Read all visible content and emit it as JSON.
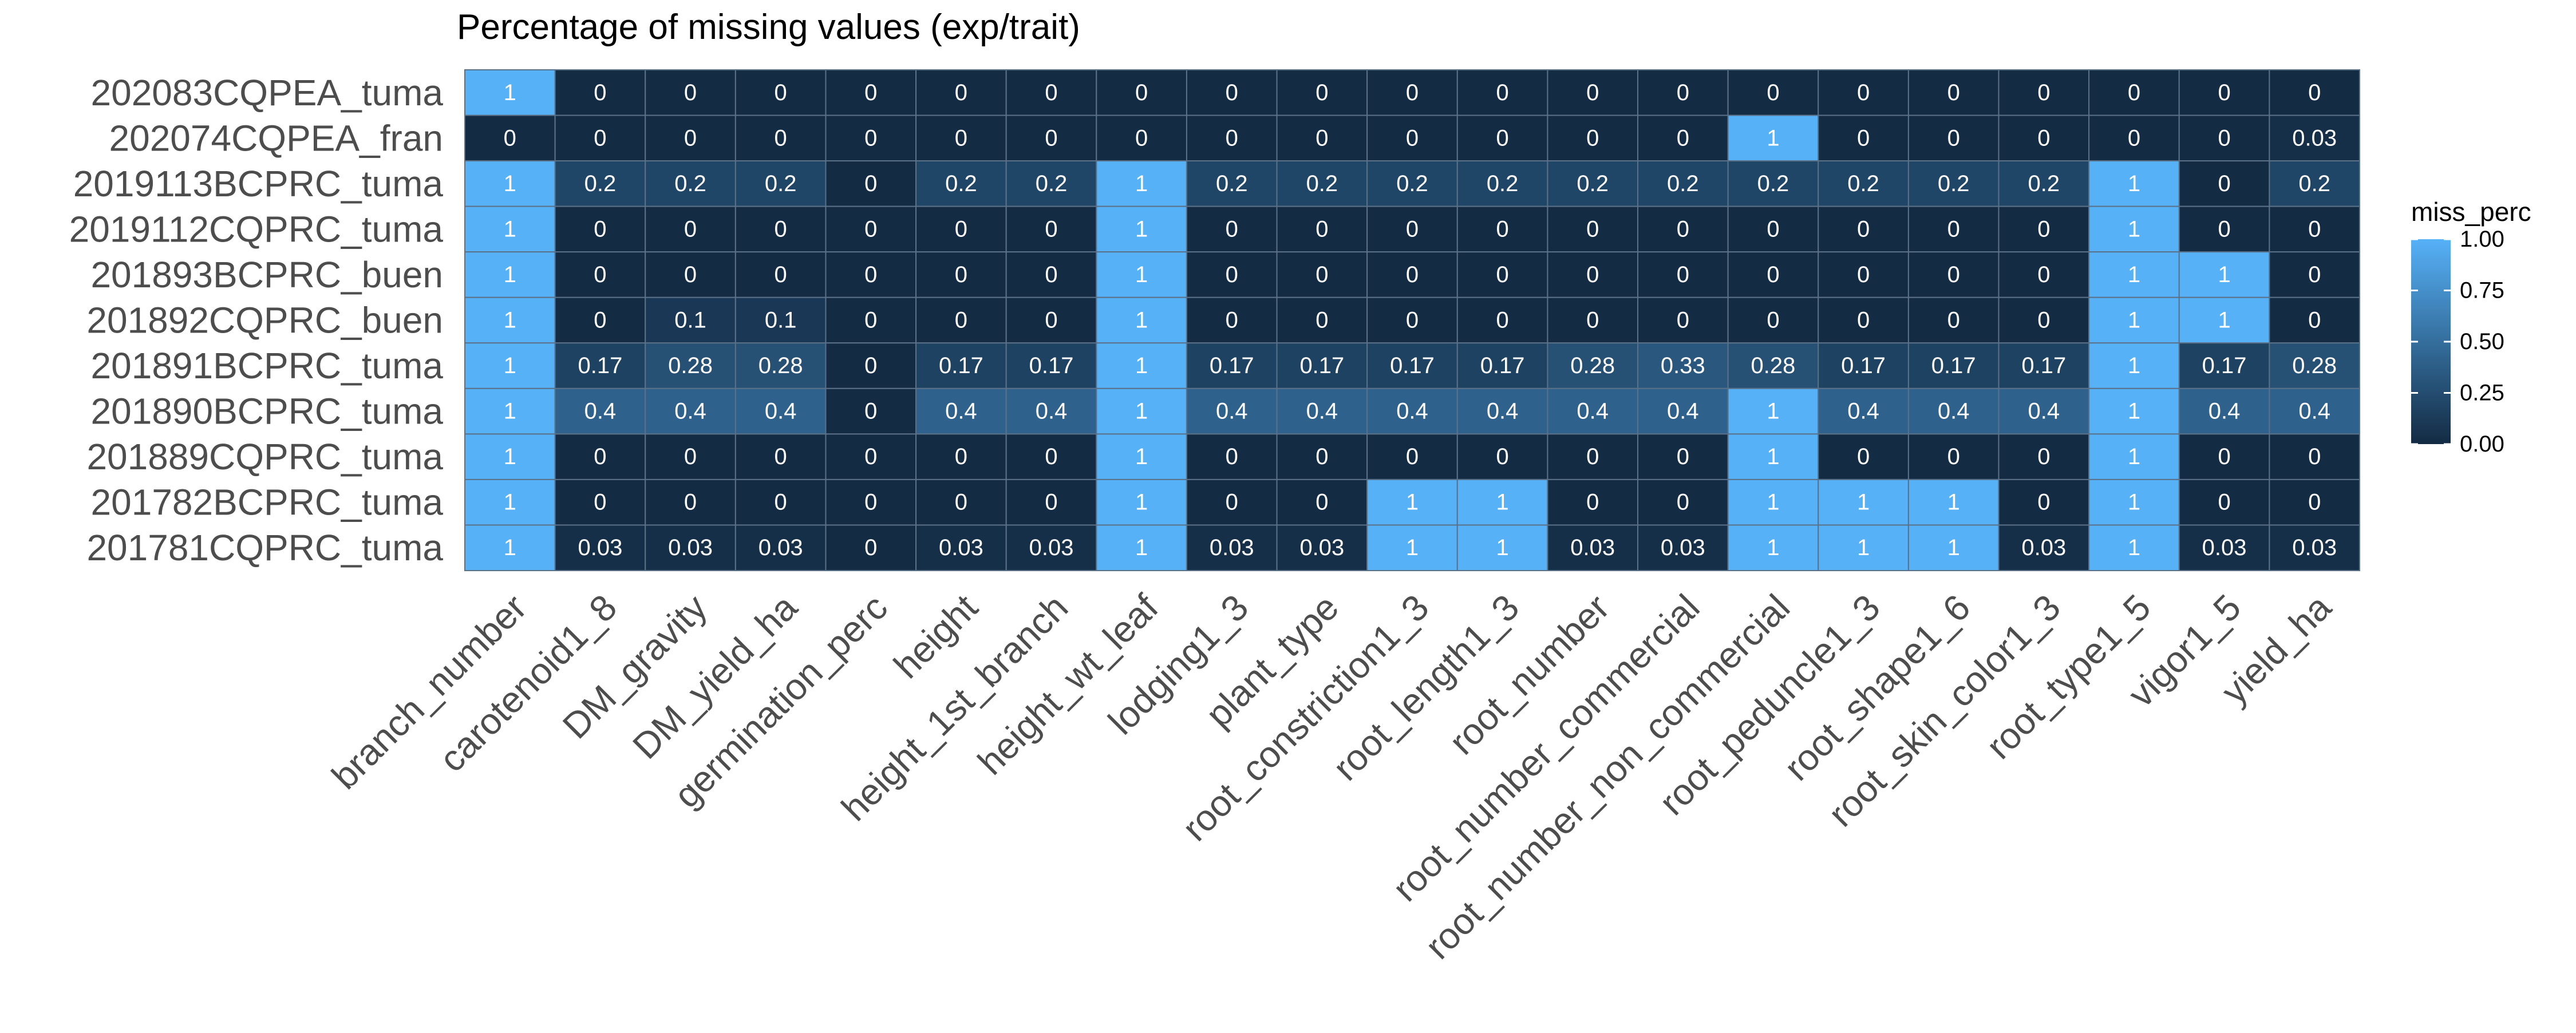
{
  "chart_data": {
    "type": "heatmap",
    "title": "Percentage of missing values (exp/trait)",
    "xlabel": "",
    "ylabel": "",
    "legend": {
      "title": "miss_perc",
      "placement": "right",
      "range": [
        0,
        1
      ],
      "ticks": [
        "0.00",
        "0.25",
        "0.50",
        "0.75",
        "1.00"
      ],
      "low_color": "#132B43",
      "high_color": "#56B1F7"
    },
    "columns": [
      "branch_number",
      "carotenoid1_8",
      "DM_gravity",
      "DM_yield_ha",
      "germination_perc",
      "height",
      "height_1st_branch",
      "height_wt_leaf",
      "lodging1_3",
      "plant_type",
      "root_constriction1_3",
      "root_length1_3",
      "root_number",
      "root_number_commercial",
      "root_number_non_commercial",
      "root_peduncle1_3",
      "root_shape1_6",
      "root_skin_color1_3",
      "root_type1_5",
      "vigor1_5",
      "yield_ha"
    ],
    "rows": [
      {
        "name": "202083CQPEA_tuma",
        "values": [
          "1",
          "0",
          "0",
          "0",
          "0",
          "0",
          "0",
          "0",
          "0",
          "0",
          "0",
          "0",
          "0",
          "0",
          "0",
          "0",
          "0",
          "0",
          "0",
          "0",
          "0"
        ]
      },
      {
        "name": "202074CQPEA_fran",
        "values": [
          "0",
          "0",
          "0",
          "0",
          "0",
          "0",
          "0",
          "0",
          "0",
          "0",
          "0",
          "0",
          "0",
          "0",
          "1",
          "0",
          "0",
          "0",
          "0",
          "0",
          "0.03"
        ]
      },
      {
        "name": "2019113BCPRC_tuma",
        "values": [
          "1",
          "0.2",
          "0.2",
          "0.2",
          "0",
          "0.2",
          "0.2",
          "1",
          "0.2",
          "0.2",
          "0.2",
          "0.2",
          "0.2",
          "0.2",
          "0.2",
          "0.2",
          "0.2",
          "0.2",
          "1",
          "0",
          "0.2"
        ]
      },
      {
        "name": "2019112CQPRC_tuma",
        "values": [
          "1",
          "0",
          "0",
          "0",
          "0",
          "0",
          "0",
          "1",
          "0",
          "0",
          "0",
          "0",
          "0",
          "0",
          "0",
          "0",
          "0",
          "0",
          "1",
          "0",
          "0"
        ]
      },
      {
        "name": "201893BCPRC_buen",
        "values": [
          "1",
          "0",
          "0",
          "0",
          "0",
          "0",
          "0",
          "1",
          "0",
          "0",
          "0",
          "0",
          "0",
          "0",
          "0",
          "0",
          "0",
          "0",
          "1",
          "1",
          "0"
        ]
      },
      {
        "name": "201892CQPRC_buen",
        "values": [
          "1",
          "0",
          "0.1",
          "0.1",
          "0",
          "0",
          "0",
          "1",
          "0",
          "0",
          "0",
          "0",
          "0",
          "0",
          "0",
          "0",
          "0",
          "0",
          "1",
          "1",
          "0"
        ]
      },
      {
        "name": "201891BCPRC_tuma",
        "values": [
          "1",
          "0.17",
          "0.28",
          "0.28",
          "0",
          "0.17",
          "0.17",
          "1",
          "0.17",
          "0.17",
          "0.17",
          "0.17",
          "0.28",
          "0.33",
          "0.28",
          "0.17",
          "0.17",
          "0.17",
          "1",
          "0.17",
          "0.28"
        ]
      },
      {
        "name": "201890BCPRC_tuma",
        "values": [
          "1",
          "0.4",
          "0.4",
          "0.4",
          "0",
          "0.4",
          "0.4",
          "1",
          "0.4",
          "0.4",
          "0.4",
          "0.4",
          "0.4",
          "0.4",
          "1",
          "0.4",
          "0.4",
          "0.4",
          "1",
          "0.4",
          "0.4"
        ]
      },
      {
        "name": "201889CQPRC_tuma",
        "values": [
          "1",
          "0",
          "0",
          "0",
          "0",
          "0",
          "0",
          "1",
          "0",
          "0",
          "0",
          "0",
          "0",
          "0",
          "1",
          "0",
          "0",
          "0",
          "1",
          "0",
          "0"
        ]
      },
      {
        "name": "201782BCPRC_tuma",
        "values": [
          "1",
          "0",
          "0",
          "0",
          "0",
          "0",
          "0",
          "1",
          "0",
          "0",
          "1",
          "1",
          "0",
          "0",
          "1",
          "1",
          "1",
          "0",
          "1",
          "0",
          "0"
        ]
      },
      {
        "name": "201781CQPRC_tuma",
        "values": [
          "1",
          "0.03",
          "0.03",
          "0.03",
          "0",
          "0.03",
          "0.03",
          "1",
          "0.03",
          "0.03",
          "1",
          "1",
          "0.03",
          "0.03",
          "1",
          "1",
          "1",
          "0.03",
          "1",
          "0.03",
          "0.03"
        ]
      }
    ]
  }
}
